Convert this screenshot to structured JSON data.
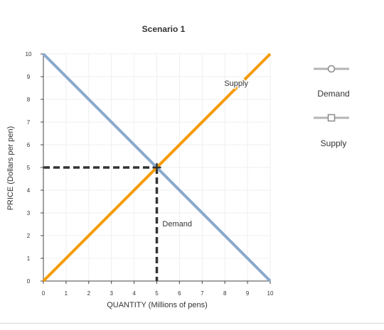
{
  "chart_data": {
    "type": "line",
    "title": "Scenario 1",
    "xlabel": "QUANTITY (Millions of pens)",
    "ylabel": "PRICE (Dollars per pen)",
    "xlim": [
      0,
      10
    ],
    "ylim": [
      0,
      10
    ],
    "xticks": [
      0,
      1,
      2,
      3,
      4,
      5,
      6,
      7,
      8,
      9,
      10
    ],
    "yticks": [
      0,
      1,
      2,
      3,
      4,
      5,
      6,
      7,
      8,
      9,
      10
    ],
    "grid": true,
    "legend_position": "right",
    "series": [
      {
        "name": "Demand",
        "color": "#89a9cf",
        "marker": "circle",
        "x": [
          0,
          10
        ],
        "y": [
          10,
          0
        ],
        "label_at": [
          5.9,
          2.4
        ]
      },
      {
        "name": "Supply",
        "color": "#f49b00",
        "marker": "square",
        "x": [
          0,
          10
        ],
        "y": [
          0,
          10
        ],
        "label_at": [
          8.5,
          8.6
        ]
      }
    ],
    "equilibrium": {
      "x": 5,
      "y": 5,
      "marker": "plus",
      "color": "#333333"
    },
    "guide_lines": {
      "style": "dashed",
      "color": "#333333"
    }
  }
}
